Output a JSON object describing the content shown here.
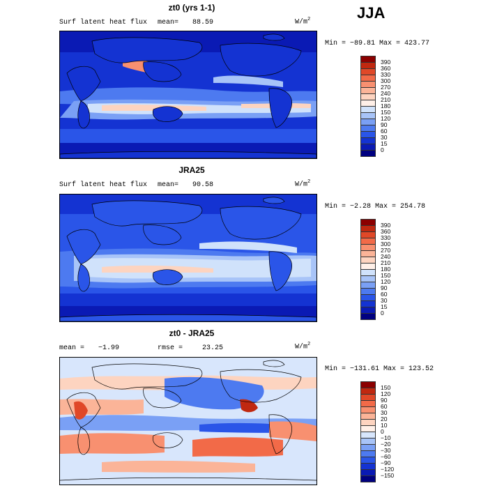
{
  "season": "JJA",
  "panels": [
    {
      "title": "zt0 (yrs 1-1)",
      "left_label": "Surf latent heat flux",
      "stat1_label": "mean=",
      "stat1_value": "88.59",
      "stat2_label": "",
      "stat2_value": "",
      "units_base": "W/m",
      "units_exp": "2",
      "minmax": "Min = −89.81 Max = 423.77",
      "colorbar": {
        "colors": [
          "#000080",
          "#0a1ab4",
          "#1433d2",
          "#2a55e8",
          "#4d7af0",
          "#7aa0f5",
          "#a8c4f8",
          "#d0e2fb",
          "#fff0e8",
          "#fdd4c0",
          "#fbb498",
          "#f89070",
          "#f26a48",
          "#e04828",
          "#c02810",
          "#8b0000"
        ],
        "labels": [
          "390",
          "360",
          "330",
          "300",
          "270",
          "240",
          "210",
          "180",
          "150",
          "120",
          "90",
          "60",
          "30",
          "15",
          "0"
        ]
      }
    },
    {
      "title": "JRA25",
      "left_label": "Surf latent heat flux",
      "stat1_label": "mean=",
      "stat1_value": "90.58",
      "stat2_label": "",
      "stat2_value": "",
      "units_base": "W/m",
      "units_exp": "2",
      "minmax": "Min = −2.28 Max = 254.78",
      "colorbar": {
        "colors": [
          "#000080",
          "#0a1ab4",
          "#1433d2",
          "#2a55e8",
          "#4d7af0",
          "#7aa0f5",
          "#a8c4f8",
          "#d0e2fb",
          "#fff0e8",
          "#fdd4c0",
          "#fbb498",
          "#f89070",
          "#f26a48",
          "#e04828",
          "#c02810",
          "#8b0000"
        ],
        "labels": [
          "390",
          "360",
          "330",
          "300",
          "270",
          "240",
          "210",
          "180",
          "150",
          "120",
          "90",
          "60",
          "30",
          "15",
          "0"
        ]
      }
    },
    {
      "title": "zt0 - JRA25",
      "left_label": "",
      "stat1_label": "mean =",
      "stat1_value": "−1.99",
      "stat2_label": "rmse =",
      "stat2_value": "23.25",
      "units_base": "W/m",
      "units_exp": "2",
      "minmax": "Min = −131.61 Max = 123.52",
      "colorbar": {
        "colors": [
          "#000080",
          "#0a1ab4",
          "#1433d2",
          "#2a55e8",
          "#4d7af0",
          "#7aa0f5",
          "#a8c4f8",
          "#d8e6fc",
          "#fff0e8",
          "#fdd4c0",
          "#fbb498",
          "#f89070",
          "#f26a48",
          "#e04828",
          "#c02810",
          "#8b0000"
        ],
        "labels": [
          "150",
          "120",
          "90",
          "60",
          "30",
          "20",
          "10",
          "0",
          "−10",
          "−20",
          "−30",
          "−60",
          "−90",
          "−120",
          "−150"
        ]
      }
    }
  ]
}
